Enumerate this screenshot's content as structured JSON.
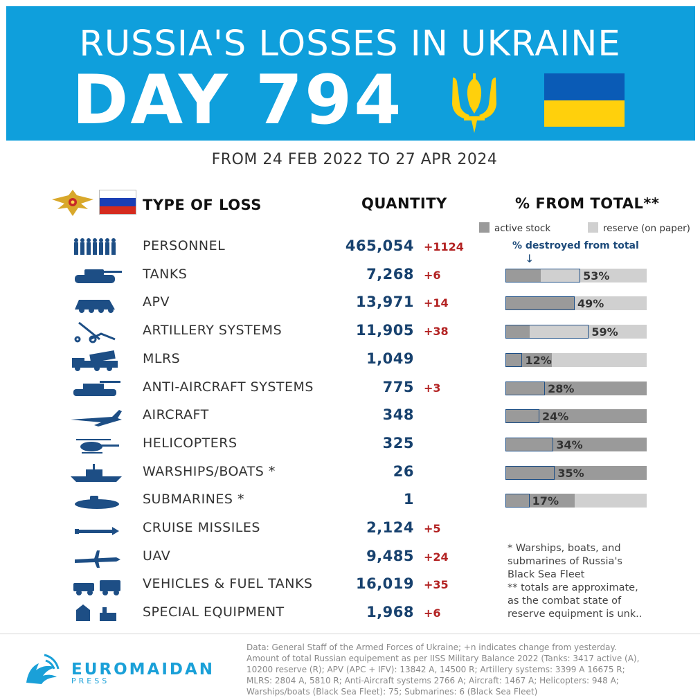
{
  "header": {
    "title": "RUSSIA'S LOSSES IN UKRAINE",
    "day_label": "DAY 794",
    "date_range": "FROM 24 FEB 2022 TO 27 APR 2024"
  },
  "columns": {
    "type": "TYPE OF LOSS",
    "quantity": "QUANTITY",
    "percent": "% FROM TOTAL**"
  },
  "legend": {
    "active": "active stock",
    "reserve": "reserve (on paper)",
    "destroyed": "% destroyed from total",
    "arrow": "↓"
  },
  "colors": {
    "banner": "#0f9fdc",
    "ukraine_blue": "#0a5bb6",
    "ukraine_yellow": "#ffd00c",
    "quantity": "#17416e",
    "delta": "#b32222",
    "active_stock": "#9a9a9a",
    "reserve": "#d0d0d0",
    "destroyed_outline": "#1d4e85"
  },
  "chart_data": {
    "type": "table",
    "rows": [
      {
        "icon": "soldiers-icon",
        "label": "PERSONNEL",
        "quantity": "465,054",
        "delta": "+1124",
        "pct": null
      },
      {
        "icon": "tank-icon",
        "label": "TANKS",
        "quantity": "7,268",
        "delta": "+6",
        "pct": "53%",
        "pct_value": 53,
        "active_share": 25
      },
      {
        "icon": "apv-icon",
        "label": "APV",
        "quantity": "13,971",
        "delta": "+14",
        "pct": "49%",
        "pct_value": 49,
        "active_share": 49
      },
      {
        "icon": "artillery-icon",
        "label": "ARTILLERY SYSTEMS",
        "quantity": "11,905",
        "delta": "+38",
        "pct": "59%",
        "pct_value": 59,
        "active_share": 17
      },
      {
        "icon": "mlrs-icon",
        "label": "MLRS",
        "quantity": "1,049",
        "delta": "",
        "pct": "12%",
        "pct_value": 12,
        "active_share": 33
      },
      {
        "icon": "anti-aircraft-icon",
        "label": "ANTI-AIRCRAFT SYSTEMS",
        "quantity": "775",
        "delta": "+3",
        "pct": "28%",
        "pct_value": 28,
        "active_share": 100
      },
      {
        "icon": "aircraft-icon",
        "label": "AIRCRAFT",
        "quantity": "348",
        "delta": "",
        "pct": "24%",
        "pct_value": 24,
        "active_share": 100
      },
      {
        "icon": "helicopter-icon",
        "label": "HELICOPTERS",
        "quantity": "325",
        "delta": "",
        "pct": "34%",
        "pct_value": 34,
        "active_share": 100
      },
      {
        "icon": "warship-icon",
        "label": "WARSHIPS/BOATS *",
        "quantity": "26",
        "delta": "",
        "pct": "35%",
        "pct_value": 35,
        "active_share": 100
      },
      {
        "icon": "submarine-icon",
        "label": "SUBMARINES *",
        "quantity": "1",
        "delta": "",
        "pct": "17%",
        "pct_value": 17,
        "active_share": 49
      },
      {
        "icon": "cruise-missile-icon",
        "label": "CRUISE MISSILES",
        "quantity": "2,124",
        "delta": "+5",
        "pct": null
      },
      {
        "icon": "uav-icon",
        "label": "UAV",
        "quantity": "9,485",
        "delta": "+24",
        "pct": null
      },
      {
        "icon": "vehicles-icon",
        "label": "VEHICLES & FUEL TANKS",
        "quantity": "16,019",
        "delta": "+35",
        "pct": null
      },
      {
        "icon": "special-equipment-icon",
        "label": "SPECIAL EQUIPMENT",
        "quantity": "1,968",
        "delta": "+6",
        "pct": null
      }
    ]
  },
  "footnote": "* Warships, boats, and\nsubmarines of Russia's\nBlack Sea Fleet\n** totals are approximate,\nas the combat state of\nreserve equipment is unk..",
  "brand": {
    "name": "EUROMAIDAN",
    "sub": "PRESS"
  },
  "source": "Data: General Staff of the Armed Forces of Ukraine; +n indicates change from yesterday. Amount of total Russian equipement as per IISS Military Balance 2022 (Tanks: 3417 active (A), 10200 reserve (R); APV (APC + IFV): 13842 A, 14500 R; Artillery systems: 3399 A 16675 R; MLRS: 2804 A, 5810 R; Anti-Aircraft systems 2766 A; Aircraft: 1467 A; Helicopters: 948 A; Warships/boats (Black Sea Fleet): 75; Submarines: 6 (Black Sea Fleet)"
}
